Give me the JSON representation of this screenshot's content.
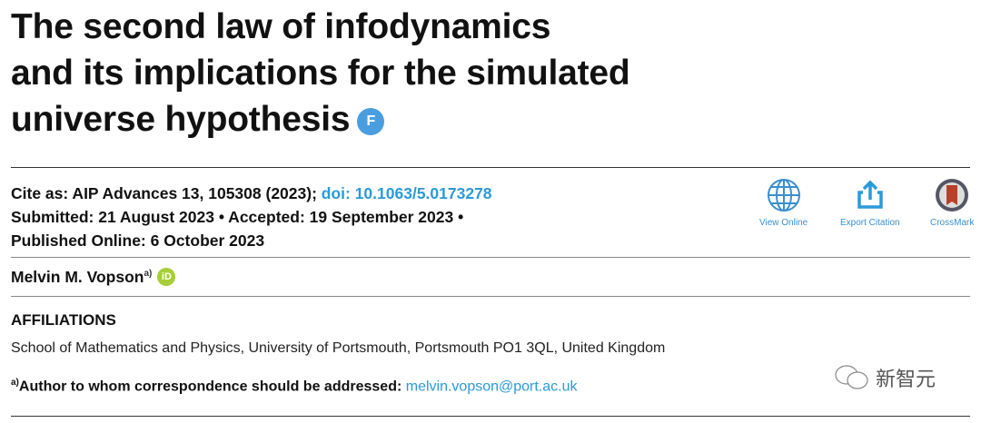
{
  "title": {
    "line1": "The second law of infodynamics",
    "line2": "and its implications for the simulated",
    "line3": "universe hypothesis",
    "badge": "F"
  },
  "citation": {
    "cite_label": "Cite as: AIP Advances 13, 105308 (2023); ",
    "doi": "doi: 10.1063/5.0173278",
    "dates": "Submitted: 21 August 2023 • Accepted: 19 September 2023 •",
    "published": "Published Online: 6 October 2023"
  },
  "tools": [
    {
      "label": "View Online",
      "icon": "globe-icon"
    },
    {
      "label": "Export Citation",
      "icon": "share-icon"
    },
    {
      "label": "CrossMark",
      "icon": "crossmark-icon"
    }
  ],
  "author": {
    "name": "Melvin M. Vopson",
    "sup": "a)",
    "orcid": "iD"
  },
  "affiliations": {
    "heading": "AFFILIATIONS",
    "line": "School of Mathematics and Physics, University of Portsmouth, Portsmouth PO1 3QL, United Kingdom"
  },
  "correspondence": {
    "sup": "a)",
    "label": "Author to whom correspondence should be addressed: ",
    "email": "melvin.vopson@port.ac.uk"
  },
  "watermark": "新智元",
  "colors": {
    "link": "#2a9ad8",
    "badge": "#4a9ee0",
    "orcid": "#a6ce39"
  }
}
